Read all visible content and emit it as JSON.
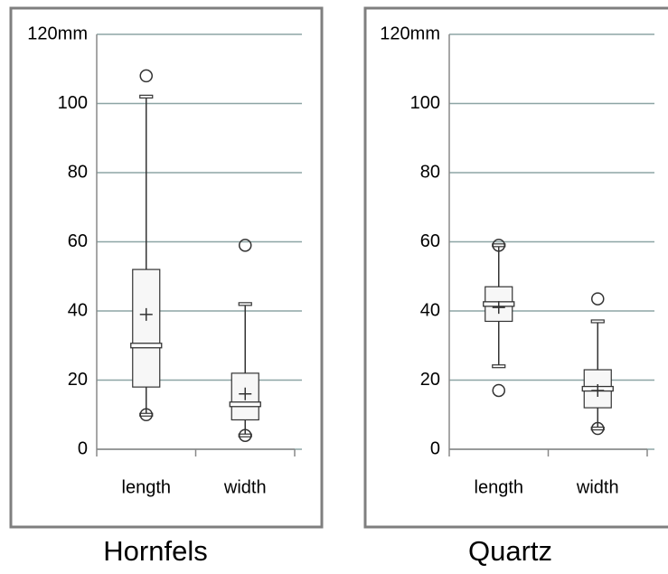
{
  "chart_data": [
    {
      "type": "box",
      "title": "Hornfels",
      "categories": [
        "length",
        "width"
      ],
      "boxes": [
        {
          "min": 10,
          "whisker_low": 10,
          "q1": 18,
          "median": 30,
          "mean": 39,
          "q3": 52,
          "whisker_high": 102,
          "max": 108
        },
        {
          "min": 4,
          "whisker_low": 4,
          "q1": 8.5,
          "median": 13,
          "mean": 16,
          "q3": 22,
          "whisker_high": 42,
          "max": 59
        }
      ],
      "ylim": [
        0,
        120
      ],
      "yticks": [
        0,
        20,
        40,
        60,
        80,
        100,
        {
          "value": 120,
          "label": "120mm"
        }
      ],
      "grid": true,
      "color": "#f7f7f7"
    },
    {
      "type": "box",
      "title": "Quartz",
      "categories": [
        "length",
        "width"
      ],
      "boxes": [
        {
          "min": 17,
          "whisker_low": 24,
          "q1": 37,
          "median": 42,
          "mean": 41,
          "q3": 47,
          "whisker_high": 59,
          "max": 59
        },
        {
          "min": 6,
          "whisker_low": 6,
          "q1": 12,
          "median": 17.5,
          "mean": 17,
          "q3": 23,
          "whisker_high": 37,
          "max": 43.5
        }
      ],
      "ylim": [
        0,
        120
      ],
      "yticks": [
        0,
        20,
        40,
        60,
        80,
        100,
        {
          "value": 120,
          "label": "120mm"
        }
      ],
      "grid": true,
      "color": "#f7f7f7"
    }
  ]
}
